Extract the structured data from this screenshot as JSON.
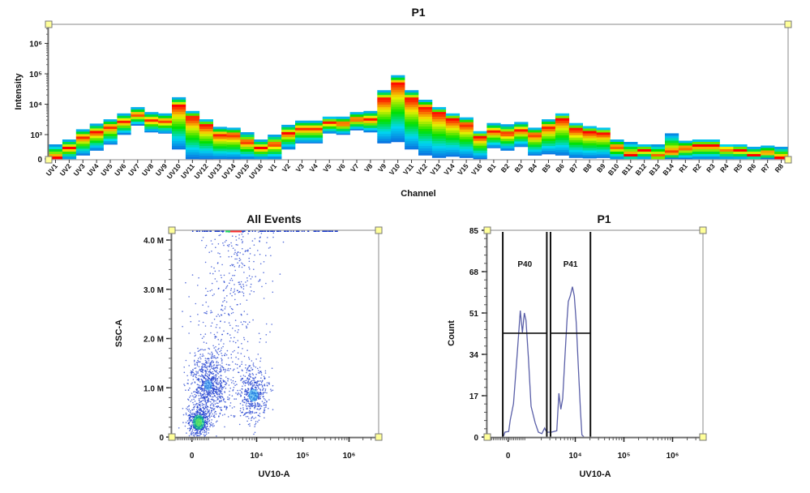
{
  "chart_data": [
    {
      "type": "heatmap",
      "title": "P1",
      "xlabel": "Channel",
      "ylabel": "Intensity",
      "y_scale": "logicle",
      "y_ticks": [
        {
          "value": 0,
          "label": "0"
        },
        {
          "value": 1000,
          "label": "10³"
        },
        {
          "value": 10000,
          "label": "10⁴"
        },
        {
          "value": 100000,
          "label": "10⁵"
        },
        {
          "value": 1000000,
          "label": "10⁶"
        }
      ],
      "colormap": [
        "#0a6fe0",
        "#00d8f0",
        "#00e000",
        "#f0f000",
        "#ff0000"
      ],
      "channels": [
        {
          "name": "UV1",
          "low": 0,
          "high": 600,
          "peak": 50
        },
        {
          "name": "UV2",
          "low": 0,
          "high": 800,
          "peak": 450
        },
        {
          "name": "UV3",
          "low": 150,
          "high": 1500,
          "peak": 900
        },
        {
          "name": "UV4",
          "low": 350,
          "high": 2300,
          "peak": 1200
        },
        {
          "name": "UV5",
          "low": 600,
          "high": 3200,
          "peak": 1800
        },
        {
          "name": "UV6",
          "low": 1000,
          "high": 5000,
          "peak": 2700
        },
        {
          "name": "UV7",
          "low": 2000,
          "high": 8000,
          "peak": 4500
        },
        {
          "name": "UV8",
          "low": 1200,
          "high": 5500,
          "peak": 3000
        },
        {
          "name": "UV9",
          "low": 1100,
          "high": 5000,
          "peak": 2800
        },
        {
          "name": "UV10",
          "low": 400,
          "high": 17000,
          "peak": 9000
        },
        {
          "name": "UV11",
          "low": 0,
          "high": 6000,
          "peak": 3700
        },
        {
          "name": "UV12",
          "low": 0,
          "high": 3200,
          "peak": 2000
        },
        {
          "name": "UV13",
          "low": 0,
          "high": 1800,
          "peak": 1000
        },
        {
          "name": "UV14",
          "low": 0,
          "high": 1700,
          "peak": 1000
        },
        {
          "name": "UV15",
          "low": 0,
          "high": 1200,
          "peak": 700
        },
        {
          "name": "UV16",
          "low": 0,
          "high": 800,
          "peak": 450
        },
        {
          "name": "V1",
          "low": 0,
          "high": 1000,
          "peak": 600
        },
        {
          "name": "V2",
          "low": 400,
          "high": 2100,
          "peak": 1100
        },
        {
          "name": "V3",
          "low": 650,
          "high": 2900,
          "peak": 1600
        },
        {
          "name": "V4",
          "low": 650,
          "high": 2900,
          "peak": 1600
        },
        {
          "name": "V5",
          "low": 1100,
          "high": 3900,
          "peak": 2500
        },
        {
          "name": "V6",
          "low": 1000,
          "high": 3900,
          "peak": 2300
        },
        {
          "name": "V7",
          "low": 1400,
          "high": 5500,
          "peak": 3200
        },
        {
          "name": "V8",
          "low": 1200,
          "high": 6000,
          "peak": 3200
        },
        {
          "name": "V9",
          "low": 650,
          "high": 29000,
          "peak": 15000
        },
        {
          "name": "V10",
          "low": 700,
          "high": 90000,
          "peak": 50000
        },
        {
          "name": "V11",
          "low": 400,
          "high": 29000,
          "peak": 15000
        },
        {
          "name": "V12",
          "low": 150,
          "high": 14000,
          "peak": 8000
        },
        {
          "name": "V13",
          "low": 50,
          "high": 8000,
          "peak": 5000
        },
        {
          "name": "V14",
          "low": 100,
          "high": 5000,
          "peak": 3200
        },
        {
          "name": "V15",
          "low": 50,
          "high": 3700,
          "peak": 2200
        },
        {
          "name": "V16",
          "low": 0,
          "high": 1300,
          "peak": 900
        },
        {
          "name": "B1",
          "low": 450,
          "high": 2400,
          "peak": 1300
        },
        {
          "name": "B2",
          "low": 350,
          "high": 2200,
          "peak": 1100
        },
        {
          "name": "B3",
          "low": 500,
          "high": 2600,
          "peak": 1400
        },
        {
          "name": "B4",
          "low": 150,
          "high": 1700,
          "peak": 1000
        },
        {
          "name": "B5",
          "low": 200,
          "high": 3200,
          "peak": 1800
        },
        {
          "name": "B6",
          "low": 150,
          "high": 5000,
          "peak": 3200
        },
        {
          "name": "B7",
          "low": 50,
          "high": 2400,
          "peak": 1500
        },
        {
          "name": "B8",
          "low": 30,
          "high": 1900,
          "peak": 1200
        },
        {
          "name": "B9",
          "low": 50,
          "high": 1700,
          "peak": 1100
        },
        {
          "name": "B10",
          "low": 0,
          "high": 800,
          "peak": 500
        },
        {
          "name": "B11",
          "low": 0,
          "high": 700,
          "peak": 150
        },
        {
          "name": "B12",
          "low": 0,
          "high": 600,
          "peak": 350
        },
        {
          "name": "B13",
          "low": 0,
          "high": 600,
          "peak": 100
        },
        {
          "name": "B14",
          "low": 0,
          "high": 1100,
          "peak": 250
        },
        {
          "name": "R1",
          "low": 0,
          "high": 750,
          "peak": 450
        },
        {
          "name": "R2",
          "low": 0,
          "high": 800,
          "peak": 550
        },
        {
          "name": "R3",
          "low": 0,
          "high": 800,
          "peak": 550
        },
        {
          "name": "R4",
          "low": 0,
          "high": 600,
          "peak": 400
        },
        {
          "name": "R5",
          "low": 0,
          "high": 600,
          "peak": 350
        },
        {
          "name": "R6",
          "low": 0,
          "high": 500,
          "peak": 150
        },
        {
          "name": "R7",
          "low": 0,
          "high": 550,
          "peak": 250
        },
        {
          "name": "R8",
          "low": 0,
          "high": 500,
          "peak": 50
        }
      ]
    },
    {
      "type": "scatter",
      "title": "All Events",
      "xlabel": "UV10-A",
      "ylabel": "SSC-A",
      "x_scale": "logicle",
      "x_ticks": [
        {
          "value": 0,
          "label": "0"
        },
        {
          "value": 10000,
          "label": "10⁴"
        },
        {
          "value": 100000,
          "label": "10⁵"
        },
        {
          "value": 1000000,
          "label": "10⁶"
        }
      ],
      "y_ticks": [
        {
          "value": 0,
          "label": "0"
        },
        {
          "value": 1000000,
          "label": "1.0 M"
        },
        {
          "value": 2000000,
          "label": "2.0 M"
        },
        {
          "value": 3000000,
          "label": "3.0 M"
        },
        {
          "value": 4000000,
          "label": "4.0 M"
        }
      ],
      "ylim": [
        0,
        4200000
      ],
      "point_color": "#1f3fcf",
      "clusters": [
        {
          "x": 365,
          "y": 300000,
          "count": 500
        },
        {
          "x": 875,
          "y": 1050000,
          "count": 700
        },
        {
          "x": 8500,
          "y": 850000,
          "count": 450
        },
        {
          "x": 2500,
          "y": 2300000,
          "count": 550
        }
      ]
    },
    {
      "type": "line",
      "title": "P1",
      "xlabel": "UV10-A",
      "ylabel": "Count",
      "x_scale": "logicle",
      "x_ticks": [
        {
          "value": 0,
          "label": "0"
        },
        {
          "value": 10000,
          "label": "10⁴"
        },
        {
          "value": 100000,
          "label": "10⁵"
        },
        {
          "value": 1000000,
          "label": "10⁶"
        }
      ],
      "y_ticks": [
        {
          "value": 0,
          "label": "0"
        },
        {
          "value": 17,
          "label": "17"
        },
        {
          "value": 34,
          "label": "34"
        },
        {
          "value": 51,
          "label": "51"
        },
        {
          "value": 68,
          "label": "68"
        },
        {
          "value": 85,
          "label": "85"
        }
      ],
      "ylim": [
        0,
        85
      ],
      "line_color": "#5a5fa8",
      "series": [
        {
          "x": [
            -250,
            -176,
            29,
            116,
            290,
            510,
            658,
            774,
            876,
            965,
            1090,
            1236,
            1496,
            1746,
            2060,
            2344,
            2495,
            2660,
            3220,
            4170,
            4600,
            5050,
            5520,
            6120,
            6760,
            7200,
            7890,
            8750,
            9550,
            10470,
            11600,
            12850,
            13700,
            14960
          ],
          "y": [
            0.3,
            2,
            2.3,
            7,
            13.7,
            36,
            52,
            43,
            51,
            48,
            32.6,
            12.6,
            5.9,
            2,
            1.4,
            3.7,
            2.6,
            2,
            2,
            2.6,
            18,
            11.4,
            15.9,
            32.6,
            48,
            55.7,
            58,
            61.8,
            58,
            47,
            28,
            10.3,
            0.9,
            0.1
          ]
        }
      ],
      "gates": [
        {
          "name": "P40",
          "x_min": -290,
          "x_max": 2600,
          "y": 42.7
        },
        {
          "name": "P41",
          "x_min": 3100,
          "x_max": 20500,
          "y": 42.7
        }
      ]
    }
  ]
}
